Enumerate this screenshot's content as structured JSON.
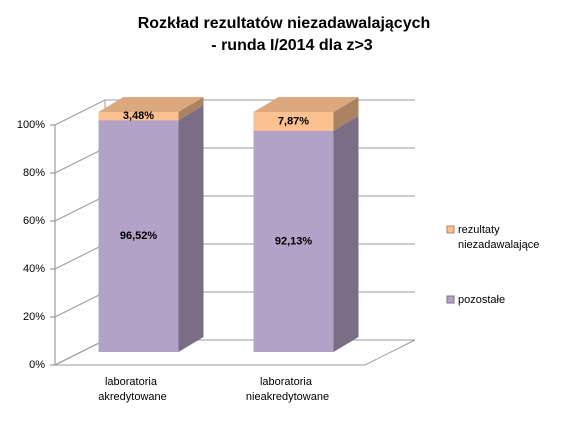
{
  "chart_data": {
    "type": "bar3d_stacked",
    "title": [
      "Rozkład rezultatów niezadawalających",
      "- runda I/2014 dla z>3"
    ],
    "categories": [
      "laboratoria akredytowane",
      "laboratoria nieakredytowane"
    ],
    "series": [
      {
        "name": "pozostałe",
        "color": "#b3a2c7",
        "values": [
          96.52,
          92.13
        ],
        "value_labels": [
          "96,52%",
          "92,13%"
        ]
      },
      {
        "name": "rezultaty niezadawalające",
        "color": "#fac090",
        "values": [
          3.48,
          7.87
        ],
        "value_labels": [
          "3,48%",
          "7,87%"
        ]
      }
    ],
    "ylim": [
      0,
      100
    ],
    "yticks": [
      {
        "value": 0,
        "label": "0%"
      },
      {
        "value": 20,
        "label": "20%"
      },
      {
        "value": 40,
        "label": "40%"
      },
      {
        "value": 60,
        "label": "60%"
      },
      {
        "value": 80,
        "label": "80%"
      },
      {
        "value": 100,
        "label": "100%"
      }
    ],
    "grid": true,
    "legend": "right"
  }
}
